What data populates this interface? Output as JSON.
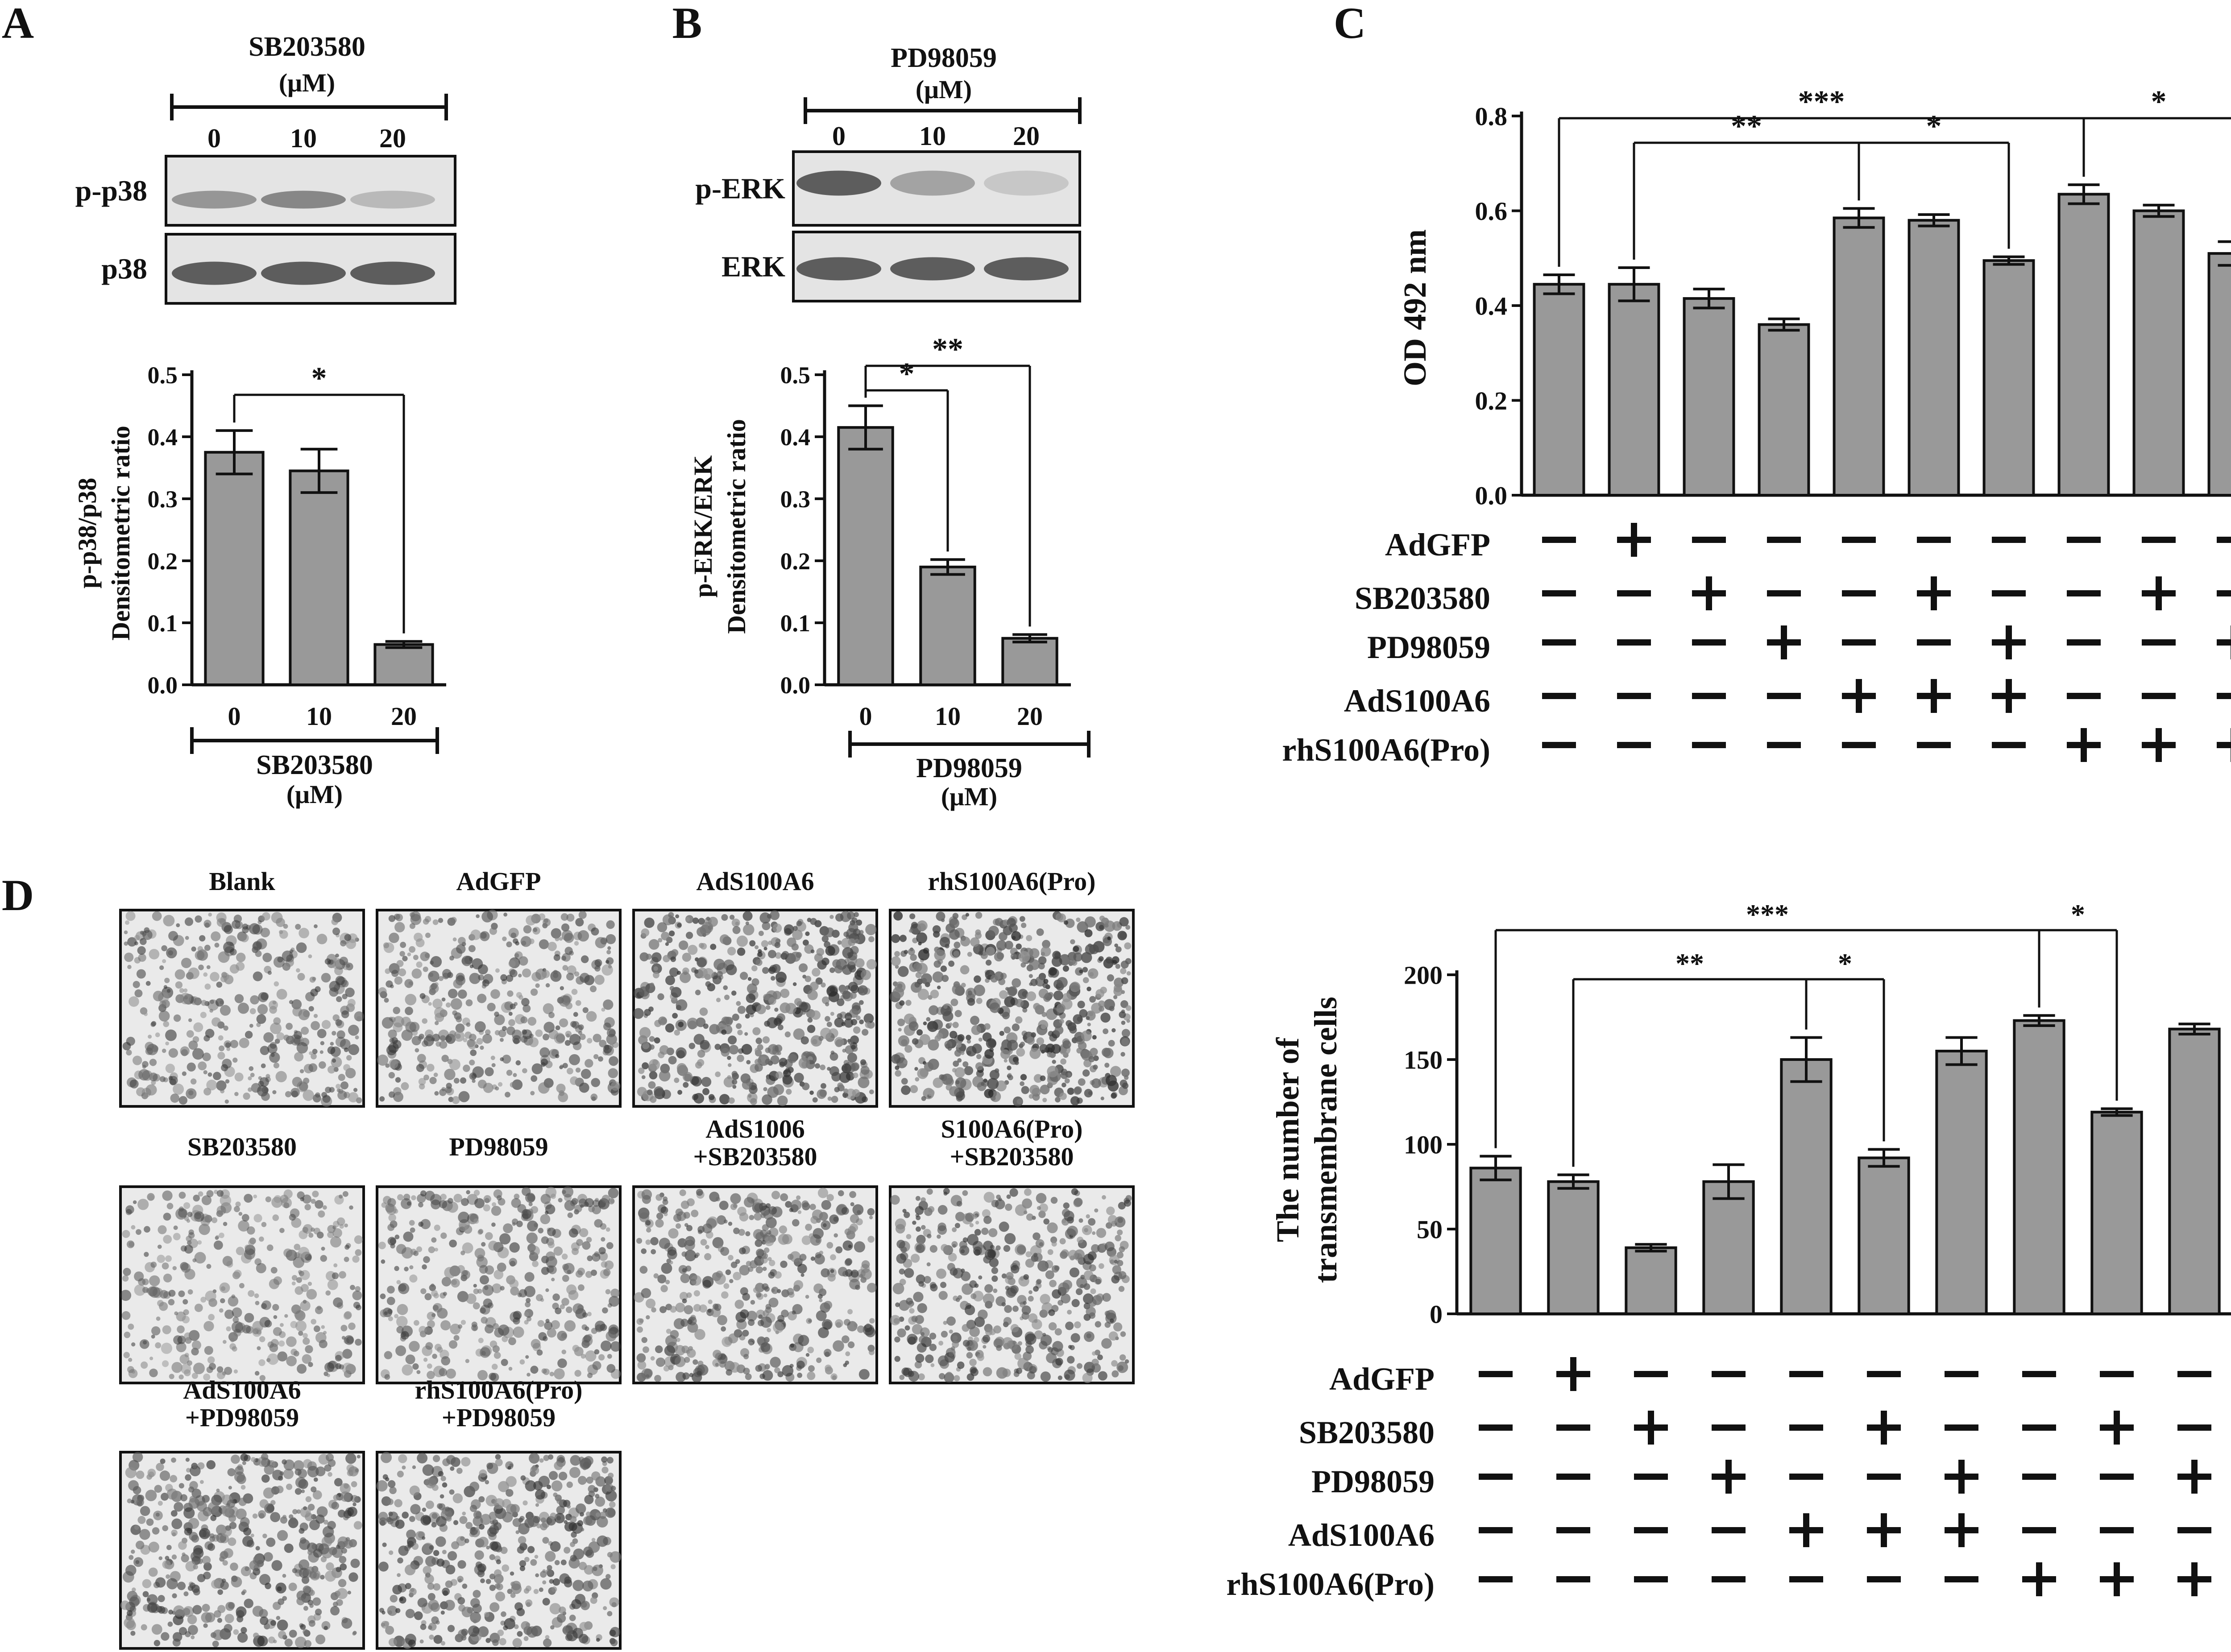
{
  "panels": {
    "A": {
      "letter": "A",
      "blot_title": "SB203580",
      "blot_unit": "(μM)",
      "lanes": [
        "0",
        "10",
        "20"
      ],
      "band_labels": [
        "p-p38",
        "p38"
      ],
      "bands": [
        [
          0.55,
          0.65,
          0.3
        ],
        [
          0.95,
          0.95,
          0.95
        ]
      ],
      "ylabel_lines": [
        "p-p38/p38",
        "Densitometric ratio"
      ],
      "xlabel_title": "SB203580",
      "xlabel_unit": "(μM)"
    },
    "B": {
      "letter": "B",
      "blot_title": "PD98059",
      "blot_unit": "(μM)",
      "lanes": [
        "0",
        "10",
        "20"
      ],
      "band_labels": [
        "p-ERK",
        "ERK"
      ],
      "bands": [
        [
          0.95,
          0.45,
          0.2
        ],
        [
          0.95,
          0.95,
          0.95
        ]
      ],
      "ylabel_lines": [
        "p-ERK/ERK",
        "Densitometric ratio"
      ],
      "xlabel_title": "PD98059",
      "xlabel_unit": "(μM)"
    },
    "C": {
      "letter": "C",
      "ylabel": "OD 492 nm",
      "row_labels": [
        "AdGFP",
        "SB203580",
        "PD98059",
        "AdS100A6",
        "rhS100A6(Pro)"
      ]
    },
    "D": {
      "letter": "D",
      "micrographs": [
        {
          "label": [
            "Blank"
          ],
          "density": 0.45
        },
        {
          "label": [
            "AdGFP"
          ],
          "density": 0.5
        },
        {
          "label": [
            "AdS100A6"
          ],
          "density": 0.75
        },
        {
          "label": [
            "rhS100A6(Pro)"
          ],
          "density": 0.85
        },
        {
          "label": [
            "SB203580"
          ],
          "density": 0.35
        },
        {
          "label": [
            "PD98059"
          ],
          "density": 0.45
        },
        {
          "label": [
            "AdS1006",
            "+SB203580"
          ],
          "density": 0.55
        },
        {
          "label": [
            "S100A6(Pro)",
            "+SB203580"
          ],
          "density": 0.6
        },
        {
          "label": [
            "AdS100A6",
            "+PD98059"
          ],
          "density": 0.6
        },
        {
          "label": [
            "rhS100A6(Pro)",
            "+PD98059"
          ],
          "density": 0.65
        }
      ],
      "ylabel_lines": [
        "The number of",
        "transmembrane cells"
      ],
      "row_labels": [
        "AdGFP",
        "SB203580",
        "PD98059",
        "AdS100A6",
        "rhS100A6(Pro)"
      ]
    }
  },
  "colors": {
    "bar": "#999999",
    "stroke": "#111111",
    "blot_bg": "#e4e4e4",
    "band": "#555555"
  },
  "chart_data": [
    {
      "type": "bar",
      "panel": "A",
      "categories": [
        "0",
        "10",
        "20"
      ],
      "values": [
        0.375,
        0.345,
        0.065
      ],
      "errors": [
        0.035,
        0.035,
        0.005
      ],
      "ylim": [
        0,
        0.5
      ],
      "yticks": [
        "0.0",
        "0.1",
        "0.2",
        "0.3",
        "0.4",
        "0.5"
      ],
      "significance": [
        {
          "from": 0,
          "to": 2,
          "label": "*"
        }
      ]
    },
    {
      "type": "bar",
      "panel": "B",
      "categories": [
        "0",
        "10",
        "20"
      ],
      "values": [
        0.415,
        0.19,
        0.075
      ],
      "errors": [
        0.035,
        0.012,
        0.006
      ],
      "ylim": [
        0,
        0.5
      ],
      "yticks": [
        "0.0",
        "0.1",
        "0.2",
        "0.3",
        "0.4",
        "0.5"
      ],
      "significance": [
        {
          "from": 0,
          "to": 1,
          "label": "*"
        },
        {
          "from": 0,
          "to": 2,
          "label": "**"
        }
      ]
    },
    {
      "type": "bar",
      "panel": "C",
      "values": [
        0.445,
        0.445,
        0.415,
        0.36,
        0.585,
        0.58,
        0.495,
        0.635,
        0.6,
        0.51
      ],
      "errors": [
        0.02,
        0.035,
        0.02,
        0.012,
        0.02,
        0.012,
        0.008,
        0.02,
        0.012,
        0.025
      ],
      "ylim": [
        0,
        0.8
      ],
      "yticks": [
        "0.0",
        "0.2",
        "0.4",
        "0.6",
        "0.8"
      ],
      "treatment_matrix": [
        [
          "-",
          "+",
          "-",
          "-",
          "-",
          "-",
          "-",
          "-",
          "-",
          "-"
        ],
        [
          "-",
          "-",
          "+",
          "-",
          "-",
          "+",
          "-",
          "-",
          "+",
          "-"
        ],
        [
          "-",
          "-",
          "-",
          "+",
          "-",
          "-",
          "+",
          "-",
          "-",
          "+"
        ],
        [
          "-",
          "-",
          "-",
          "-",
          "+",
          "+",
          "+",
          "-",
          "-",
          "-"
        ],
        [
          "-",
          "-",
          "-",
          "-",
          "-",
          "-",
          "-",
          "+",
          "+",
          "+"
        ]
      ],
      "significance": [
        {
          "from": 0,
          "to": 7,
          "label": "***"
        },
        {
          "from": 1,
          "to": 4,
          "label": "**"
        },
        {
          "from": 4,
          "to": 6,
          "label": "*"
        },
        {
          "from": 7,
          "to": 9,
          "label": "*"
        }
      ]
    },
    {
      "type": "bar",
      "panel": "D",
      "values": [
        86,
        78,
        39,
        78,
        150,
        92,
        155,
        173,
        119,
        168
      ],
      "errors": [
        7,
        4,
        2,
        10,
        13,
        5,
        8,
        3,
        2,
        3
      ],
      "ylim": [
        0,
        200
      ],
      "yticks": [
        "0",
        "50",
        "100",
        "150",
        "200"
      ],
      "treatment_matrix": [
        [
          "-",
          "+",
          "-",
          "-",
          "-",
          "-",
          "-",
          "-",
          "-",
          "-"
        ],
        [
          "-",
          "-",
          "+",
          "-",
          "-",
          "+",
          "-",
          "-",
          "+",
          "-"
        ],
        [
          "-",
          "-",
          "-",
          "+",
          "-",
          "-",
          "+",
          "-",
          "-",
          "+"
        ],
        [
          "-",
          "-",
          "-",
          "-",
          "+",
          "+",
          "+",
          "-",
          "-",
          "-"
        ],
        [
          "-",
          "-",
          "-",
          "-",
          "-",
          "-",
          "-",
          "+",
          "+",
          "+"
        ]
      ],
      "significance": [
        {
          "from": 0,
          "to": 7,
          "label": "***"
        },
        {
          "from": 1,
          "to": 4,
          "label": "**"
        },
        {
          "from": 4,
          "to": 5,
          "label": "*"
        },
        {
          "from": 7,
          "to": 8,
          "label": "*"
        }
      ]
    }
  ]
}
